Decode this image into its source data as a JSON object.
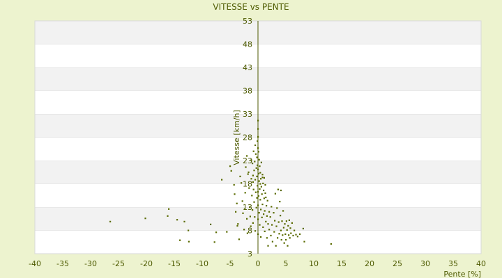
{
  "chart_data": {
    "type": "scatter",
    "title": "VITESSE vs PENTE",
    "xlabel": "Pente [%]",
    "ylabel": "Vitesse [km/h]",
    "xlim": [
      -40,
      40
    ],
    "ylim": [
      3,
      53
    ],
    "xticks": [
      -40,
      -35,
      -30,
      -25,
      -20,
      -15,
      -10,
      -5,
      0,
      5,
      10,
      15,
      20,
      25,
      30,
      35,
      40
    ],
    "yticks": [
      3,
      8,
      13,
      18,
      23,
      28,
      33,
      38,
      43,
      48,
      53
    ],
    "grid": "horizontal alternating bands",
    "legend": "none",
    "colors": {
      "background": "#edf3cf",
      "plot_band_light": "#ffffff",
      "plot_band_dark": "#f2f2f2",
      "axis": "#4d5a00",
      "text": "#4d5a00",
      "marker": "#5a6b00"
    },
    "series": [
      {
        "points": [
          [
            -26.5,
            9.9
          ],
          [
            -20.2,
            10.6
          ],
          [
            -16.0,
            12.6
          ],
          [
            -16.2,
            11.1
          ],
          [
            -14.5,
            10.3
          ],
          [
            -13.2,
            9.9
          ],
          [
            -12.5,
            8.0
          ],
          [
            -14.0,
            5.9
          ],
          [
            -12.4,
            5.6
          ],
          [
            -8.5,
            9.3
          ],
          [
            -7.5,
            7.6
          ],
          [
            -7.8,
            5.5
          ],
          [
            -5.6,
            7.7
          ],
          [
            -6.5,
            18.9
          ],
          [
            -5.0,
            21.8
          ],
          [
            -4.8,
            20.8
          ],
          [
            -4.3,
            17.8
          ],
          [
            -4.2,
            15.8
          ],
          [
            -4.0,
            12.0
          ],
          [
            -3.8,
            13.8
          ],
          [
            -3.6,
            9.4
          ],
          [
            -3.4,
            6.1
          ],
          [
            -3.2,
            19.6
          ],
          [
            -3.0,
            18.2
          ],
          [
            -2.8,
            14.3
          ],
          [
            -2.7,
            11.7
          ],
          [
            -2.5,
            8.2
          ],
          [
            -2.3,
            16.1
          ],
          [
            -2.2,
            21.6
          ],
          [
            -2.0,
            24.0
          ],
          [
            -2.0,
            10.5
          ],
          [
            -1.9,
            7.4
          ],
          [
            -1.7,
            20.5
          ],
          [
            -1.6,
            17.1
          ],
          [
            -1.5,
            13.0
          ],
          [
            -1.4,
            11.0
          ],
          [
            -1.3,
            8.9
          ],
          [
            -1.2,
            23.1
          ],
          [
            -1.2,
            19.1
          ],
          [
            -1.1,
            15.5
          ],
          [
            -1.0,
            22.4
          ],
          [
            -1.0,
            12.4
          ],
          [
            -0.9,
            18.4
          ],
          [
            -0.9,
            9.6
          ],
          [
            -0.8,
            25.0
          ],
          [
            -0.8,
            16.8
          ],
          [
            -0.7,
            20.9
          ],
          [
            -0.7,
            14.1
          ],
          [
            -0.6,
            22.8
          ],
          [
            -0.6,
            10.9
          ],
          [
            -0.5,
            26.3
          ],
          [
            -0.5,
            18.9
          ],
          [
            -0.5,
            7.9
          ],
          [
            -0.4,
            24.4
          ],
          [
            -0.4,
            16.2
          ],
          [
            -0.3,
            21.4
          ],
          [
            -0.3,
            12.9
          ],
          [
            -0.2,
            23.7
          ],
          [
            -0.2,
            19.6
          ],
          [
            -0.2,
            15.0
          ],
          [
            -0.1,
            27.2
          ],
          [
            -0.1,
            22.0
          ],
          [
            -0.1,
            17.6
          ],
          [
            0.0,
            31.6
          ],
          [
            0.0,
            29.8
          ],
          [
            0.0,
            28.1
          ],
          [
            0.0,
            25.7
          ],
          [
            0.0,
            21.1
          ],
          [
            0.0,
            16.3
          ],
          [
            0.0,
            13.4
          ],
          [
            0.0,
            10.4
          ],
          [
            0.0,
            7.2
          ],
          [
            0.1,
            24.9
          ],
          [
            0.1,
            20.2
          ],
          [
            0.1,
            15.4
          ],
          [
            0.2,
            23.2
          ],
          [
            0.2,
            18.6
          ],
          [
            0.2,
            11.8
          ],
          [
            0.3,
            21.8
          ],
          [
            0.3,
            16.9
          ],
          [
            0.3,
            9.2
          ],
          [
            0.4,
            20.4
          ],
          [
            0.4,
            14.6
          ],
          [
            0.5,
            19.1
          ],
          [
            0.5,
            12.5
          ],
          [
            0.5,
            6.6
          ],
          [
            0.6,
            22.6
          ],
          [
            0.6,
            17.4
          ],
          [
            0.7,
            15.8
          ],
          [
            0.7,
            10.8
          ],
          [
            0.8,
            20.0
          ],
          [
            0.8,
            13.6
          ],
          [
            0.9,
            18.1
          ],
          [
            0.9,
            8.7
          ],
          [
            1.0,
            16.6
          ],
          [
            1.0,
            11.5
          ],
          [
            1.1,
            19.3
          ],
          [
            1.1,
            14.9
          ],
          [
            1.2,
            12.2
          ],
          [
            1.2,
            7.8
          ],
          [
            1.3,
            17.8
          ],
          [
            1.4,
            15.1
          ],
          [
            1.4,
            9.9
          ],
          [
            1.5,
            13.3
          ],
          [
            1.6,
            11.1
          ],
          [
            1.6,
            6.4
          ],
          [
            1.7,
            14.4
          ],
          [
            1.8,
            9.4
          ],
          [
            1.8,
            4.7
          ],
          [
            2.0,
            12.0
          ],
          [
            2.0,
            8.2
          ],
          [
            2.2,
            10.9
          ],
          [
            2.3,
            6.9
          ],
          [
            2.4,
            13.1
          ],
          [
            2.5,
            9.2
          ],
          [
            2.6,
            5.6
          ],
          [
            2.8,
            11.8
          ],
          [
            2.9,
            7.7
          ],
          [
            3.0,
            10.1
          ],
          [
            3.1,
            15.9
          ],
          [
            3.2,
            4.7
          ],
          [
            3.3,
            8.9
          ],
          [
            3.4,
            12.8
          ],
          [
            3.5,
            6.4
          ],
          [
            3.6,
            16.8
          ],
          [
            3.7,
            9.8
          ],
          [
            3.8,
            7.3
          ],
          [
            3.9,
            14.2
          ],
          [
            4.0,
            11.2
          ],
          [
            4.1,
            8.0
          ],
          [
            4.1,
            16.6
          ],
          [
            4.2,
            6.0
          ],
          [
            4.3,
            10.0
          ],
          [
            4.4,
            7.0
          ],
          [
            4.5,
            12.2
          ],
          [
            4.6,
            8.6
          ],
          [
            4.7,
            5.3
          ],
          [
            4.8,
            9.4
          ],
          [
            4.9,
            7.2
          ],
          [
            5.0,
            6.0
          ],
          [
            5.1,
            10.0
          ],
          [
            5.2,
            8.1
          ],
          [
            5.3,
            4.7
          ],
          [
            5.4,
            9.0
          ],
          [
            5.5,
            7.0
          ],
          [
            5.6,
            10.2
          ],
          [
            5.7,
            6.4
          ],
          [
            5.8,
            8.5
          ],
          [
            5.9,
            7.4
          ],
          [
            6.1,
            9.6
          ],
          [
            6.3,
            6.9
          ],
          [
            6.5,
            8.0
          ],
          [
            6.8,
            7.1
          ],
          [
            7.1,
            6.7
          ],
          [
            7.5,
            7.2
          ],
          [
            8.1,
            8.4
          ],
          [
            8.3,
            5.6
          ],
          [
            13.1,
            5.1
          ],
          [
            -3.7,
            9.0
          ],
          [
            -2.4,
            12.6
          ],
          [
            -1.8,
            20.1
          ],
          [
            -0.9,
            19.8
          ],
          [
            0.4,
            18.0
          ],
          [
            0.8,
            19.4
          ],
          [
            1.3,
            16.0
          ]
        ]
      }
    ]
  }
}
